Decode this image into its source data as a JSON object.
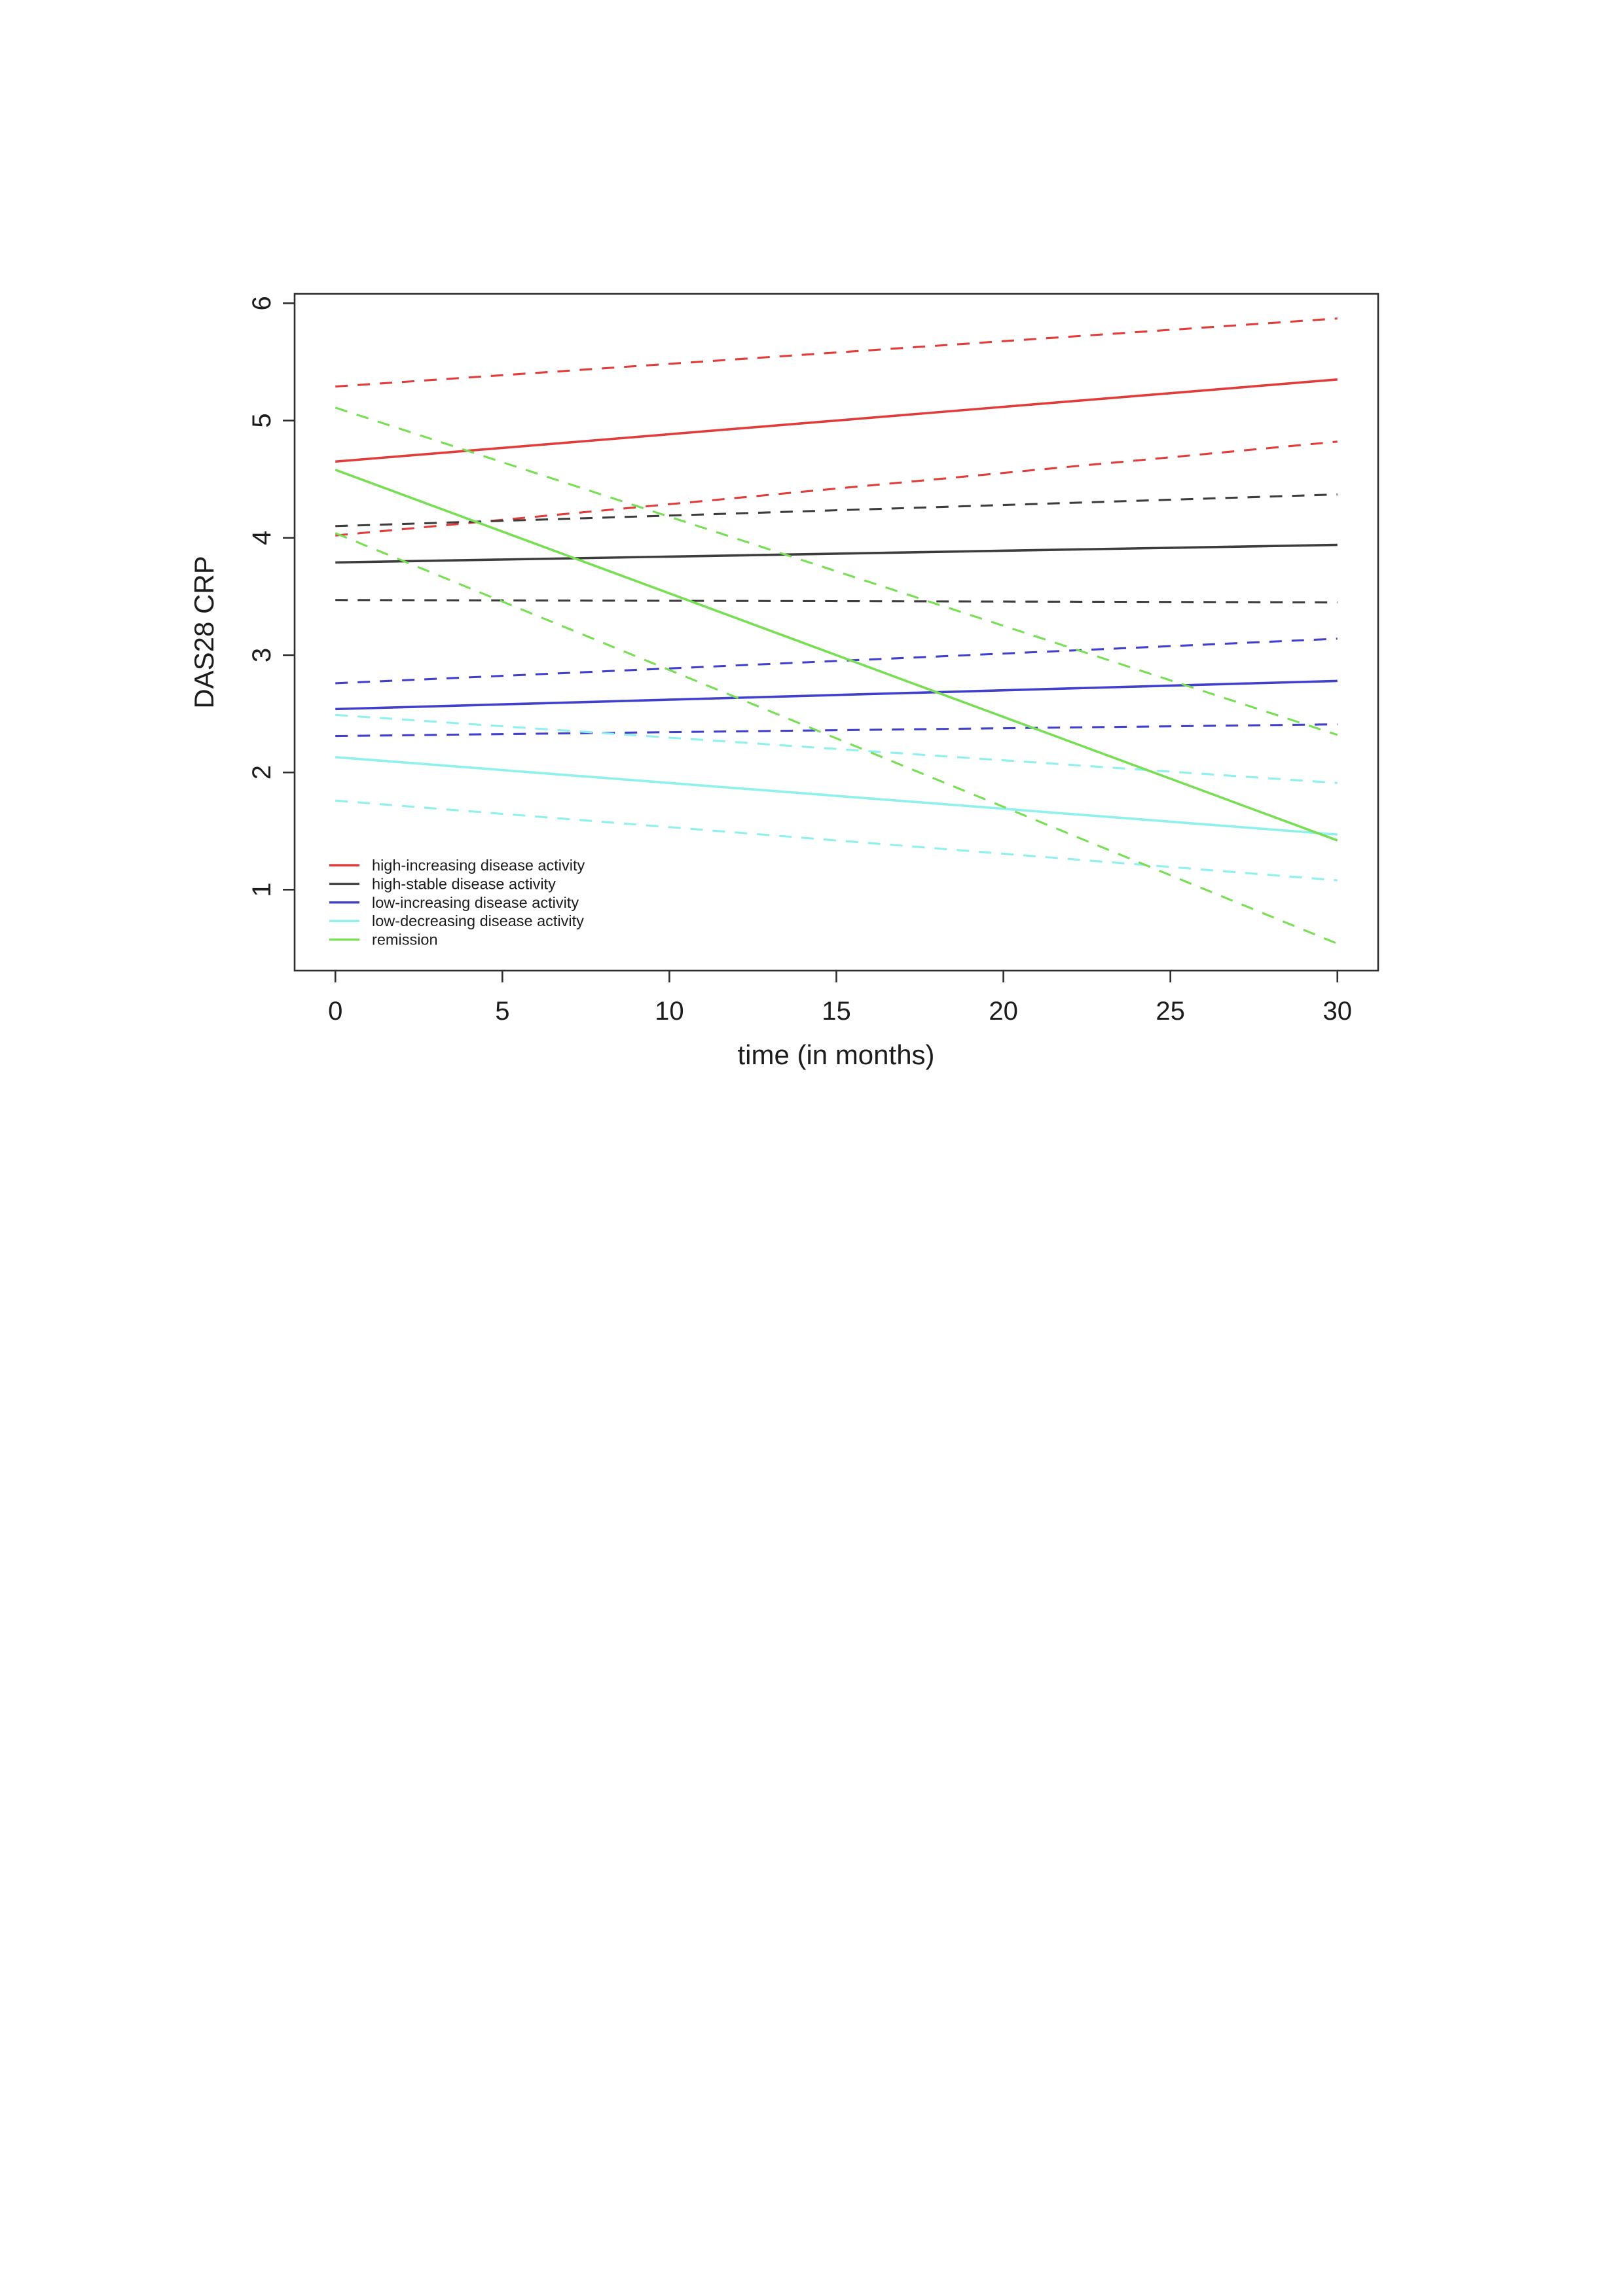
{
  "chart_data": {
    "type": "line",
    "title": "",
    "xlabel": "time (in months)",
    "ylabel": "DAS28 CRP",
    "x_ticks": [
      0,
      5,
      10,
      15,
      20,
      25,
      30
    ],
    "y_ticks": [
      1,
      2,
      3,
      4,
      5,
      6
    ],
    "xlim": [
      -1.22,
      31.22
    ],
    "ylim": [
      0.31,
      6.08
    ],
    "grid": false,
    "legend_position": "inside-bottom-left",
    "legend": [
      {
        "label": "high-increasing disease activity",
        "color": "#e23c3a"
      },
      {
        "label": "high-stable disease activity",
        "color": "#474747"
      },
      {
        "label": "low-increasing disease activity",
        "color": "#4040cc"
      },
      {
        "label": "low-decreasing disease activity",
        "color": "#8ef1ee"
      },
      {
        "label": "remission",
        "color": "#78df55"
      }
    ],
    "series": [
      {
        "name": "high-increasing disease activity (mean)",
        "color": "#e23c3a",
        "style": "solid",
        "x": [
          0,
          30
        ],
        "y": [
          4.65,
          5.35
        ]
      },
      {
        "name": "high-increasing disease activity upper band",
        "color": "#e23c3a",
        "style": "dashed",
        "x": [
          0,
          30
        ],
        "y": [
          5.29,
          5.87
        ]
      },
      {
        "name": "high-increasing disease activity lower band",
        "color": "#e23c3a",
        "style": "dashed",
        "x": [
          0,
          30
        ],
        "y": [
          4.02,
          4.82
        ]
      },
      {
        "name": "high-stable disease activity (mean)",
        "color": "#3d3d3d",
        "style": "solid",
        "x": [
          0,
          30
        ],
        "y": [
          3.79,
          3.94
        ]
      },
      {
        "name": "high-stable disease activity upper band",
        "color": "#3d3d3d",
        "style": "dashed",
        "x": [
          0,
          30
        ],
        "y": [
          4.1,
          4.37
        ]
      },
      {
        "name": "high-stable disease activity lower band",
        "color": "#3d3d3d",
        "style": "dashed",
        "x": [
          0,
          30
        ],
        "y": [
          3.47,
          3.45
        ]
      },
      {
        "name": "low-increasing disease activity (mean)",
        "color": "#4040cc",
        "style": "solid",
        "x": [
          0,
          30
        ],
        "y": [
          2.54,
          2.78
        ]
      },
      {
        "name": "low-increasing disease activity upper band",
        "color": "#4040cc",
        "style": "dashed",
        "x": [
          0,
          30
        ],
        "y": [
          2.76,
          3.14
        ]
      },
      {
        "name": "low-increasing disease activity lower band",
        "color": "#4040cc",
        "style": "dashed",
        "x": [
          0,
          30
        ],
        "y": [
          2.31,
          2.41
        ]
      },
      {
        "name": "low-decreasing disease activity (mean)",
        "color": "#8ef1ee",
        "style": "solid",
        "x": [
          0,
          30
        ],
        "y": [
          2.13,
          1.47
        ]
      },
      {
        "name": "low-decreasing disease activity upper band",
        "color": "#8ef1ee",
        "style": "dashed",
        "x": [
          0,
          30
        ],
        "y": [
          2.49,
          1.91
        ]
      },
      {
        "name": "low-decreasing disease activity lower band",
        "color": "#8ef1ee",
        "style": "dashed",
        "x": [
          0,
          30
        ],
        "y": [
          1.76,
          1.08
        ]
      },
      {
        "name": "remission (mean)",
        "color": "#78df55",
        "style": "solid",
        "x": [
          0,
          30
        ],
        "y": [
          4.58,
          1.42
        ]
      },
      {
        "name": "remission upper band",
        "color": "#78df55",
        "style": "dashed",
        "x": [
          0,
          30
        ],
        "y": [
          5.11,
          2.32
        ]
      },
      {
        "name": "remission lower band",
        "color": "#78df55",
        "style": "dashed",
        "x": [
          0,
          30
        ],
        "y": [
          4.04,
          0.54
        ]
      }
    ]
  }
}
